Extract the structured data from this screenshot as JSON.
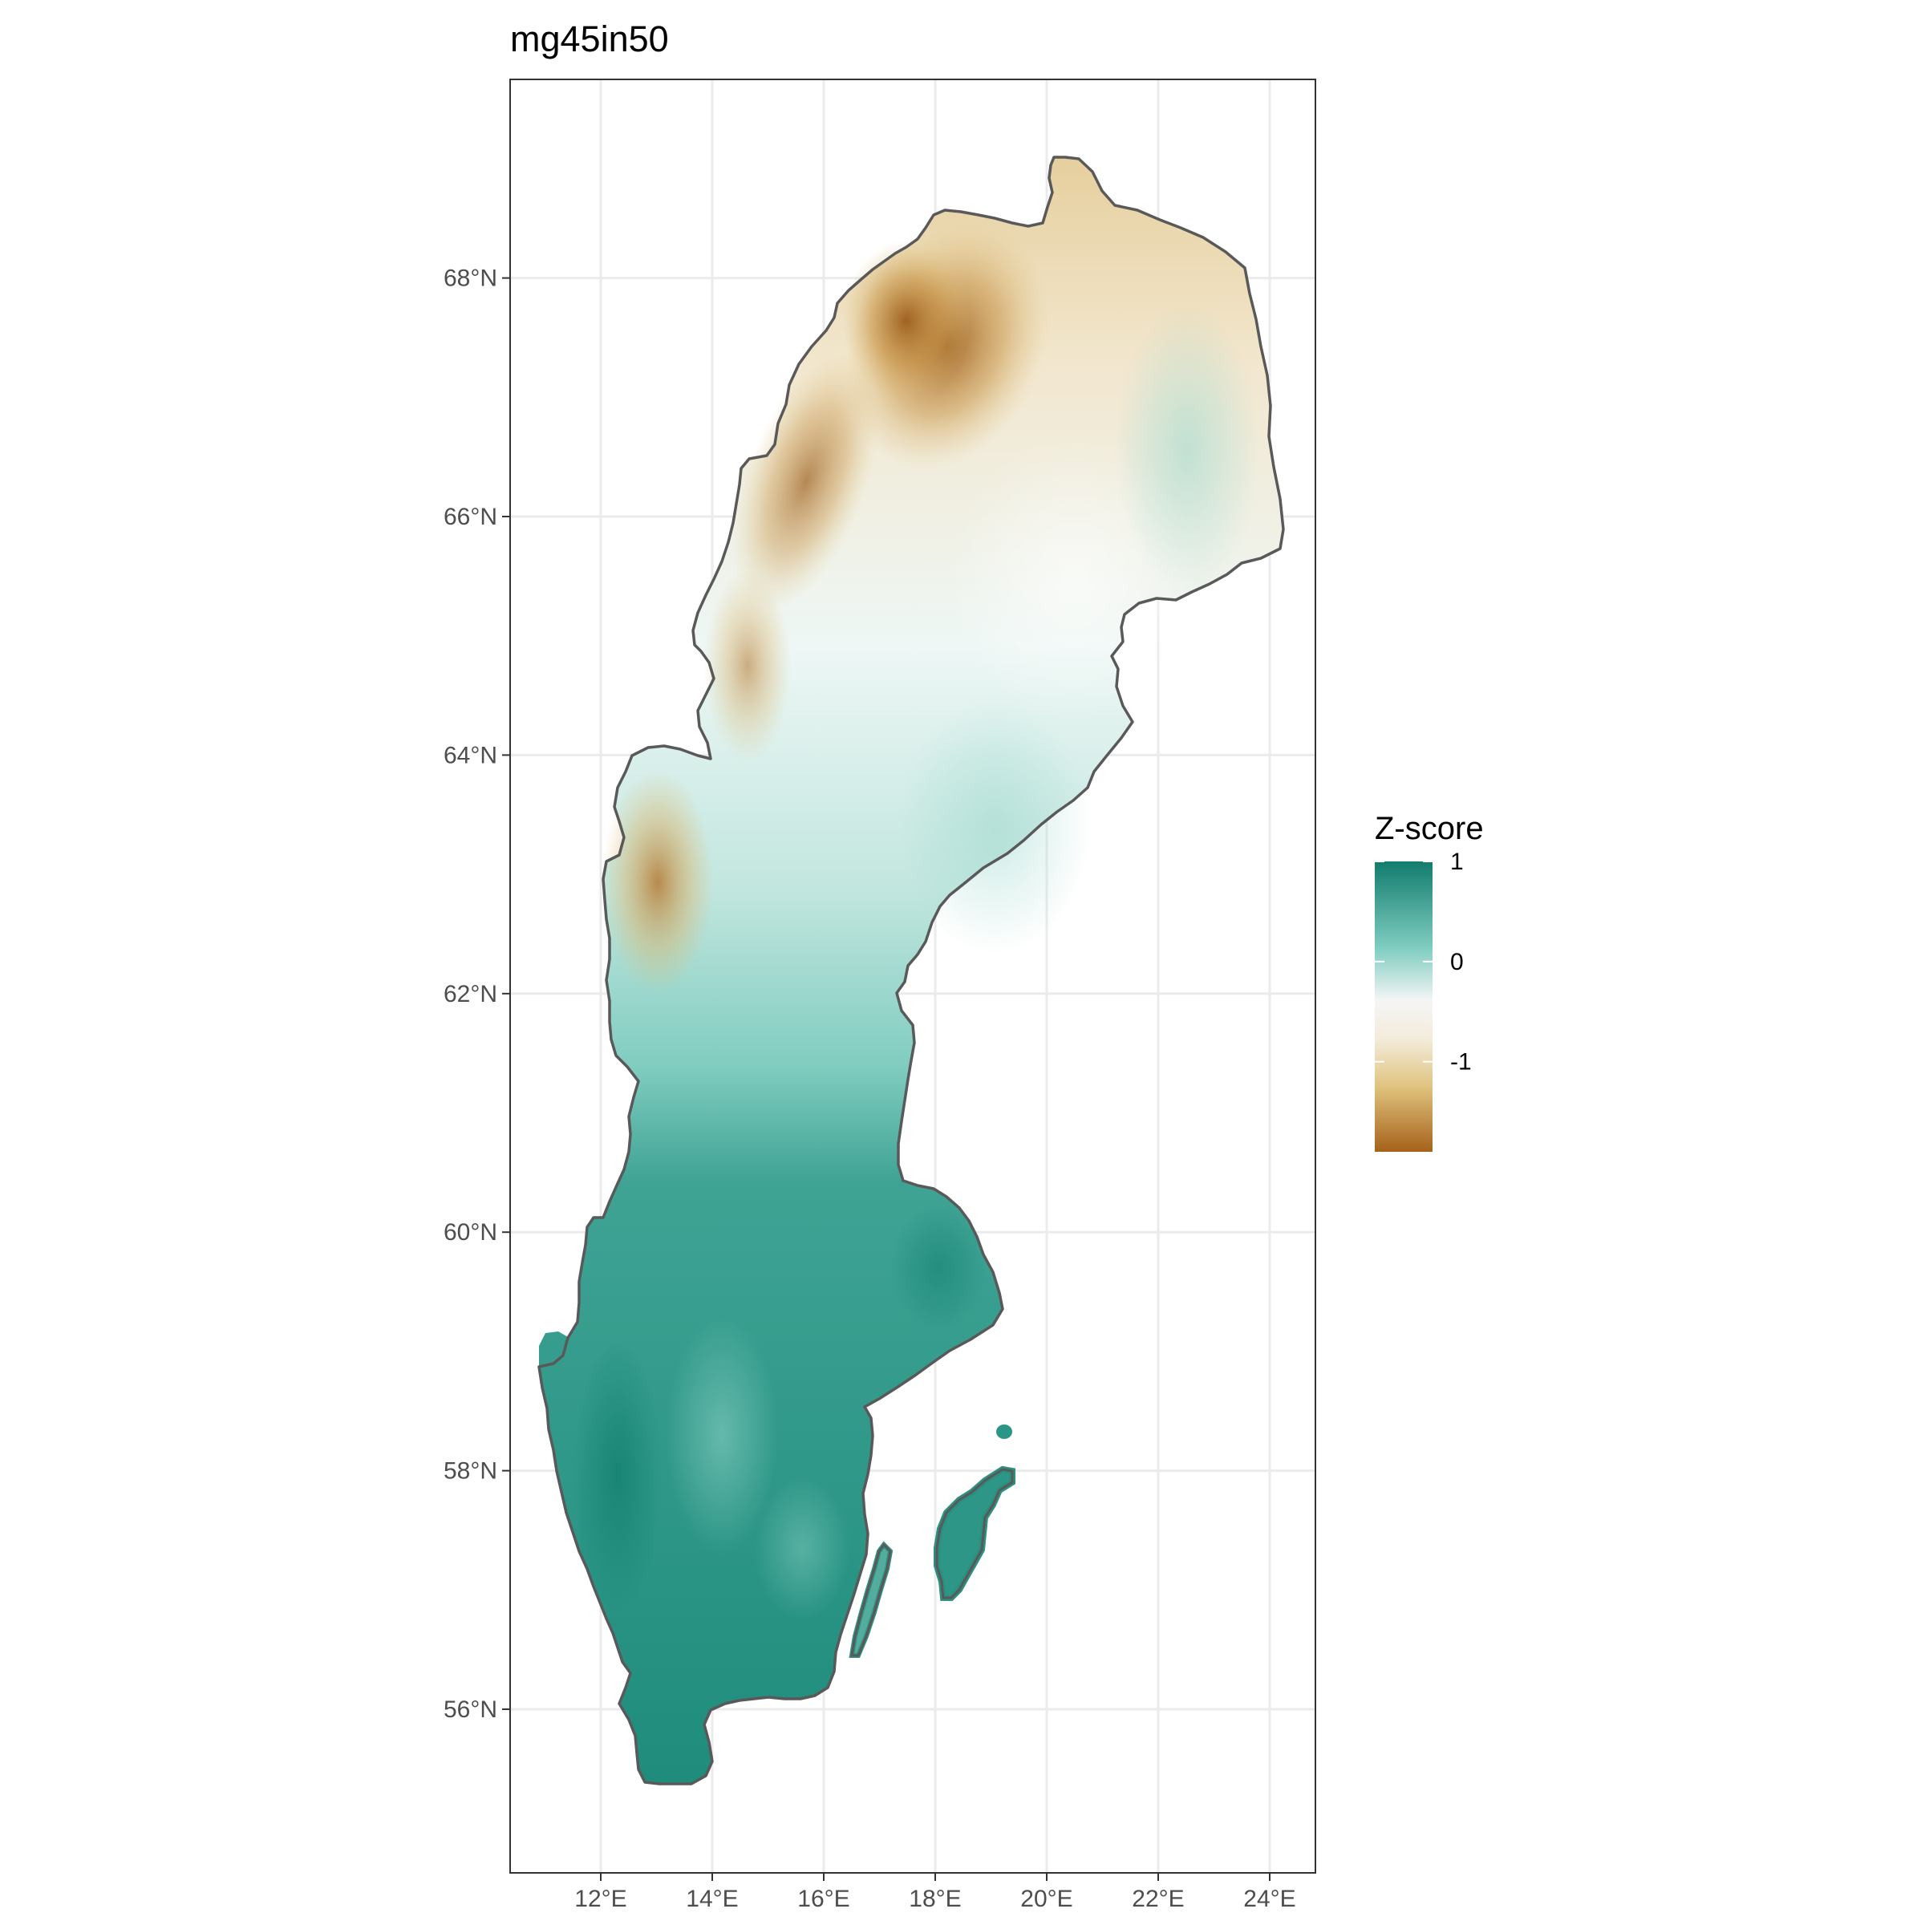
{
  "title": "mg45in50",
  "legend": {
    "title": "Z-score",
    "ticks": [
      {
        "value": 1,
        "label": "1"
      },
      {
        "value": 0,
        "label": "0"
      },
      {
        "value": -1,
        "label": "-1"
      }
    ],
    "range": [
      -1.9,
      1.0
    ],
    "palette": [
      "#a6611a",
      "#dfc27d",
      "#f5f5f5",
      "#80cdc1",
      "#018571"
    ]
  },
  "axes": {
    "x_ticks": [
      {
        "value": 12,
        "label": "12°E"
      },
      {
        "value": 14,
        "label": "14°E"
      },
      {
        "value": 16,
        "label": "16°E"
      },
      {
        "value": 18,
        "label": "18°E"
      },
      {
        "value": 20,
        "label": "20°E"
      },
      {
        "value": 22,
        "label": "22°E"
      },
      {
        "value": 24,
        "label": "24°E"
      }
    ],
    "y_ticks": [
      {
        "value": 56,
        "label": "56°N"
      },
      {
        "value": 58,
        "label": "58°N"
      },
      {
        "value": 60,
        "label": "60°N"
      },
      {
        "value": 62,
        "label": "62°N"
      },
      {
        "value": 64,
        "label": "64°N"
      },
      {
        "value": 66,
        "label": "66°N"
      },
      {
        "value": 68,
        "label": "68°N"
      }
    ],
    "grid": true
  },
  "colors": {
    "panel_border": "#333333",
    "grid": "#ebebeb",
    "outline": "#595959"
  }
}
